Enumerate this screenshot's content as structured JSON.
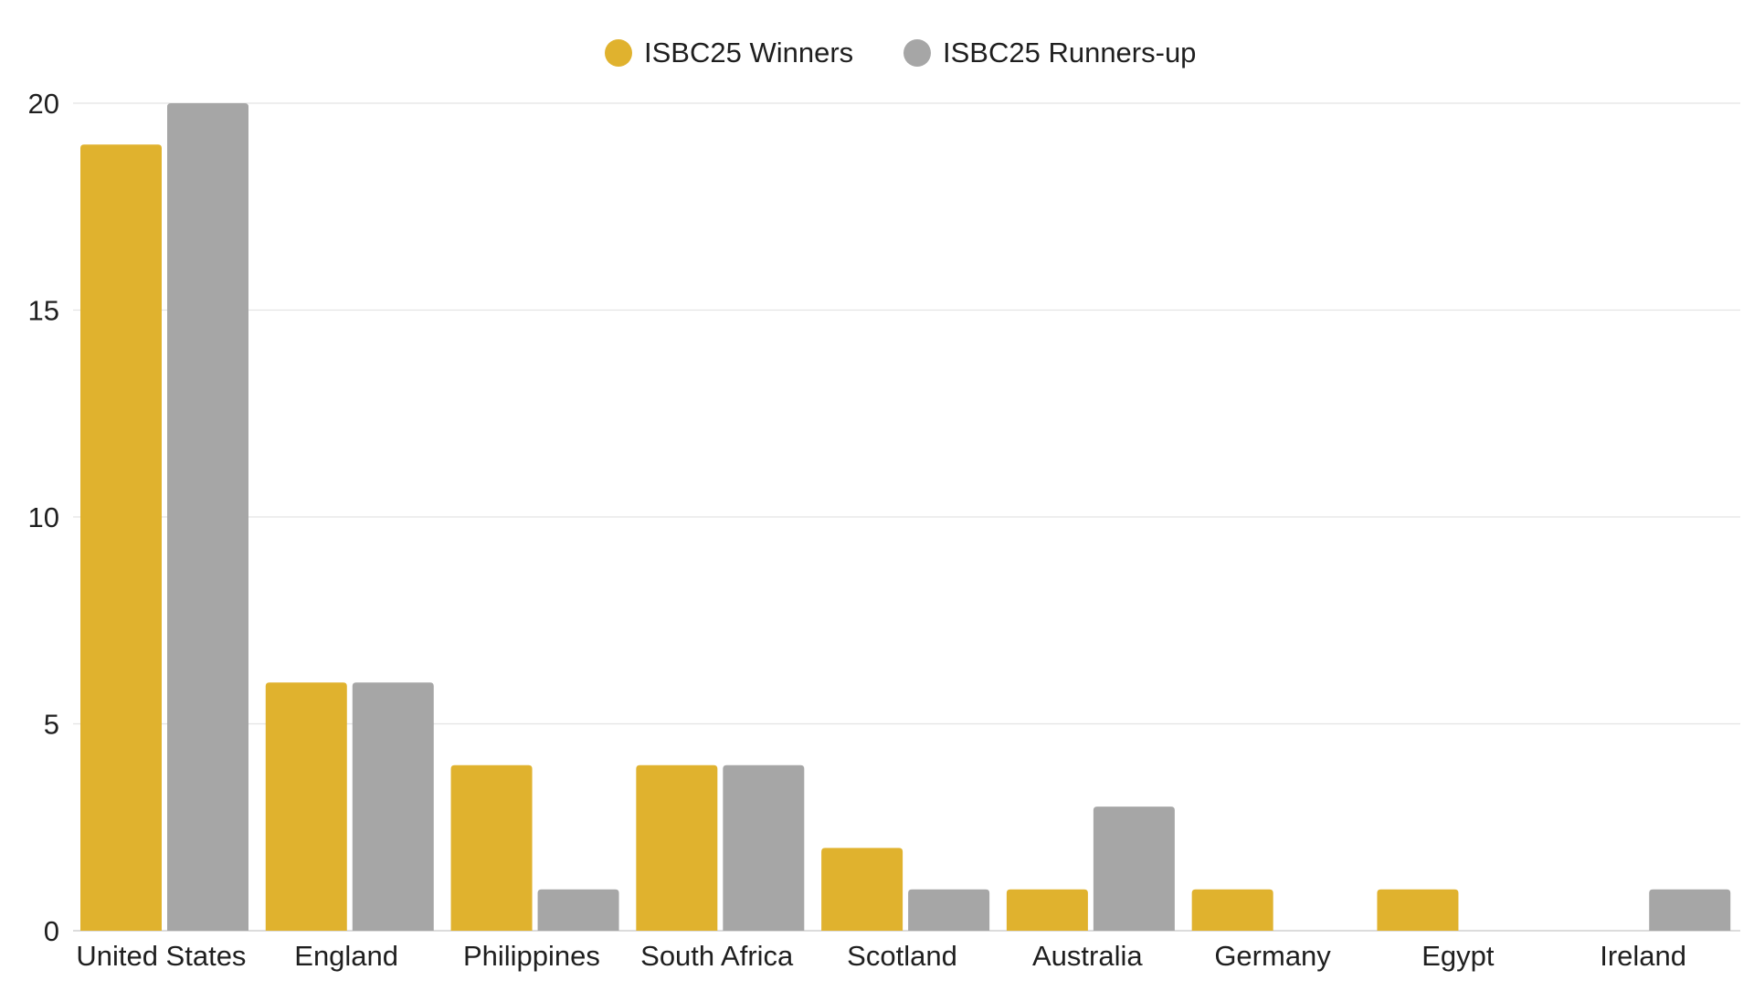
{
  "chart_data": {
    "type": "bar",
    "title": "",
    "xlabel": "",
    "ylabel": "",
    "categories": [
      "United States",
      "England",
      "Philippines",
      "South Africa",
      "Scotland",
      "Australia",
      "Germany",
      "Egypt",
      "Ireland"
    ],
    "series": [
      {
        "name": "ISBC25 Winners",
        "color": "#e0b22e",
        "values": [
          19,
          6,
          4,
          4,
          2,
          1,
          1,
          1,
          0
        ]
      },
      {
        "name": "ISBC25 Runners-up",
        "color": "#a6a6a6",
        "values": [
          20,
          6,
          1,
          4,
          1,
          3,
          0,
          0,
          1
        ]
      }
    ],
    "ylim": [
      0,
      20
    ],
    "yticks": [
      0,
      5,
      10,
      15,
      20
    ],
    "grid": true,
    "legend_position": "top-center"
  }
}
